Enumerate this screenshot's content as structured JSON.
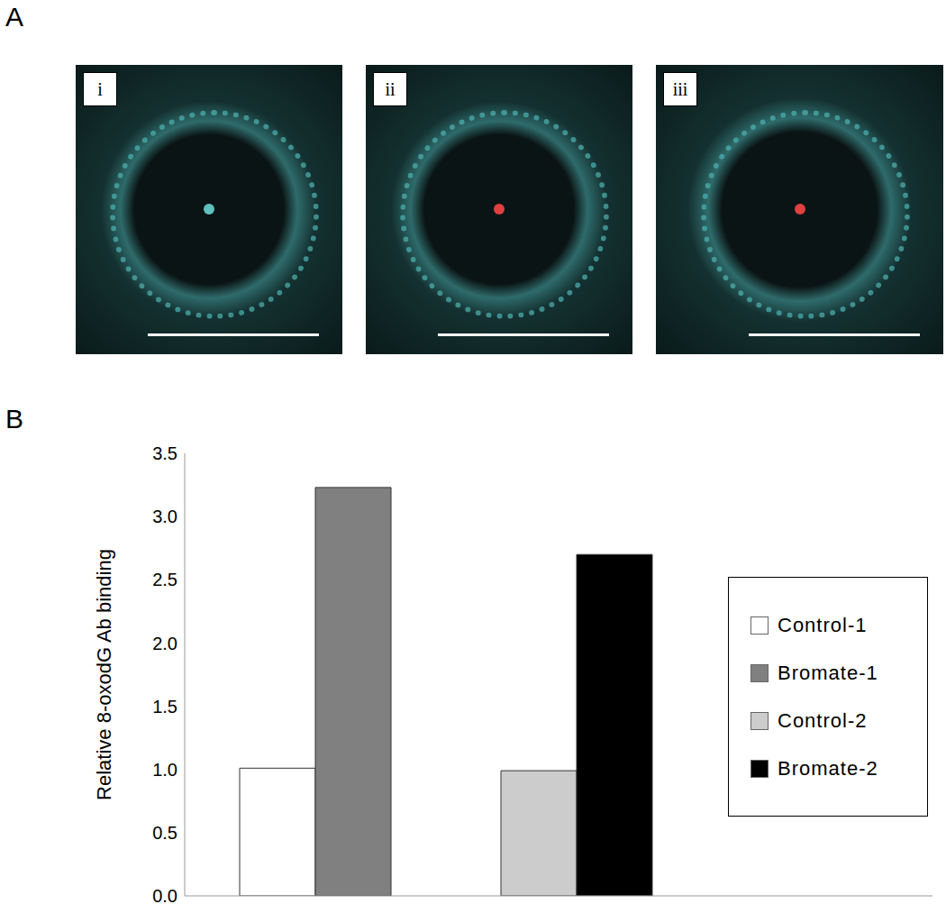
{
  "panel_labels": [
    "A",
    "B"
  ],
  "images": {
    "labels": [
      "i",
      "ii",
      "iii"
    ]
  },
  "chart_data": {
    "type": "bar",
    "categories": [
      null,
      null
    ],
    "series": [
      {
        "name": "Control-1",
        "color": "#ffffff",
        "values": [
          1.01,
          null
        ]
      },
      {
        "name": "Bromate-1",
        "color": "#808080",
        "values": [
          3.23,
          null
        ]
      },
      {
        "name": "Control-2",
        "color": "#cccccc",
        "values": [
          null,
          0.99
        ]
      },
      {
        "name": "Bromate-2",
        "color": "#000000",
        "values": [
          null,
          2.7
        ]
      }
    ],
    "y_label": "Relative 8-oxodG Ab binding",
    "ylim": [
      0,
      3.5
    ],
    "yticks": [
      {
        "value": 0,
        "label": "0.0"
      },
      0.5,
      {
        "value": 1,
        "label": "1.0"
      },
      1.5,
      {
        "value": 2,
        "label": "2.0"
      },
      2.5,
      {
        "value": 3,
        "label": "3.0"
      },
      3.5
    ],
    "grid": false,
    "legend": "right",
    "tick_labels": "y"
  }
}
